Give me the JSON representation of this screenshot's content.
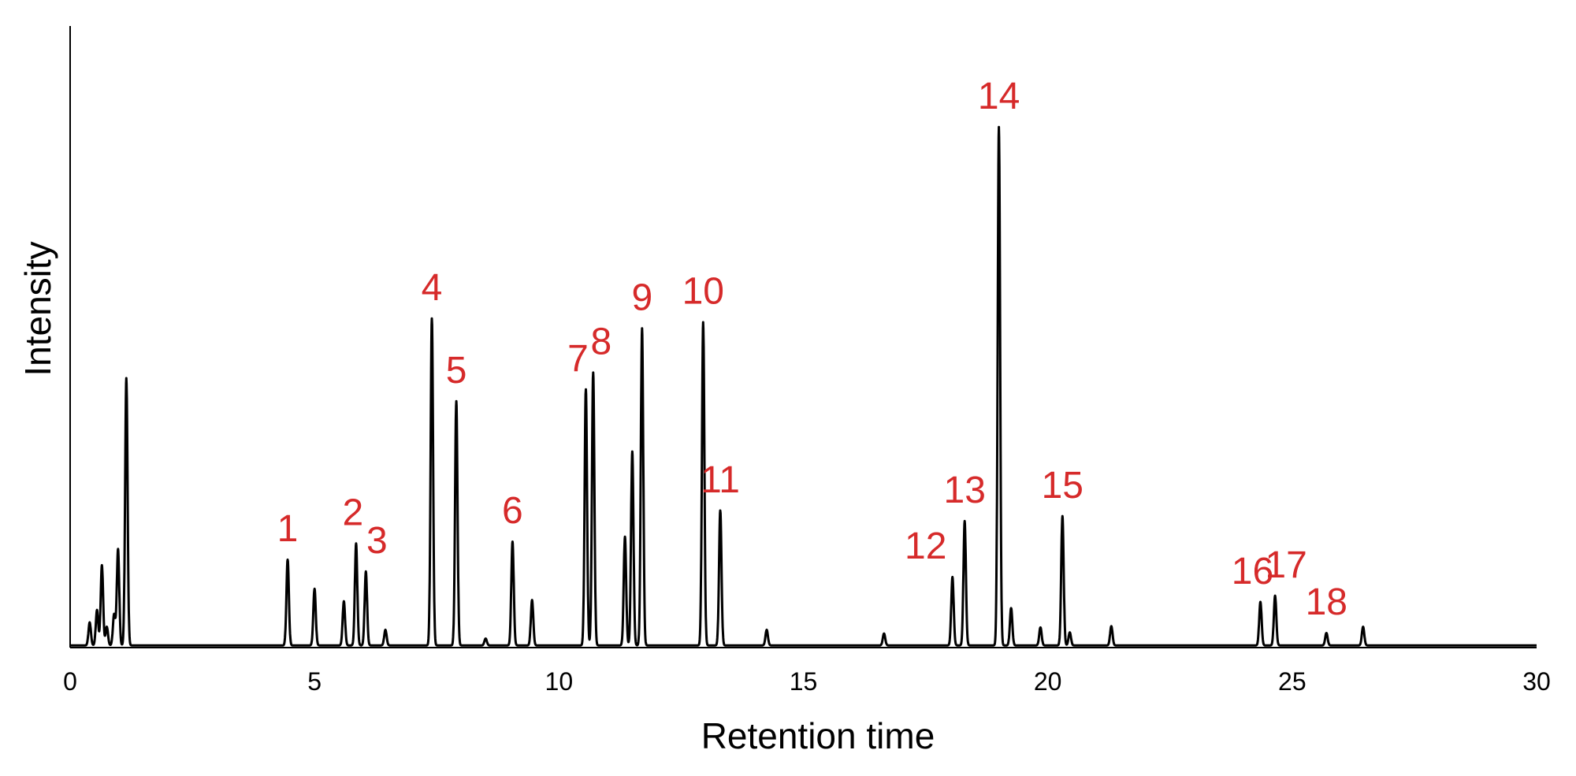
{
  "chart_data": {
    "type": "line",
    "xlabel": "Retention time",
    "ylabel": "Intensity",
    "xlim": [
      0,
      30
    ],
    "ylim": [
      0,
      100
    ],
    "x_ticks": [
      0,
      5,
      10,
      15,
      20,
      25,
      30
    ],
    "y_ticks_shown": false,
    "grid": false,
    "legend": "none",
    "line_color": "#000000",
    "label_color": "#d62a2a",
    "labeled_peaks": [
      {
        "label": "1",
        "x": 4.45,
        "y": 13.8
      },
      {
        "label": "2",
        "x": 5.85,
        "y": 16.4
      },
      {
        "label": "3",
        "x": 6.05,
        "y": 11.9
      },
      {
        "label": "4",
        "x": 7.4,
        "y": 52.6
      },
      {
        "label": "5",
        "x": 7.9,
        "y": 39.3
      },
      {
        "label": "6",
        "x": 9.05,
        "y": 16.7
      },
      {
        "label": "7",
        "x": 10.55,
        "y": 41.2
      },
      {
        "label": "8",
        "x": 10.7,
        "y": 43.9
      },
      {
        "label": "9",
        "x": 11.7,
        "y": 51.0
      },
      {
        "label": "10",
        "x": 12.95,
        "y": 52.0
      },
      {
        "label": "11",
        "x": 13.3,
        "y": 21.7
      },
      {
        "label": "12",
        "x": 18.05,
        "y": 11.0
      },
      {
        "label": "13",
        "x": 18.3,
        "y": 20.0
      },
      {
        "label": "14",
        "x": 19.0,
        "y": 83.4
      },
      {
        "label": "15",
        "x": 20.3,
        "y": 20.8
      },
      {
        "label": "16",
        "x": 24.35,
        "y": 7.0
      },
      {
        "label": "17",
        "x": 24.65,
        "y": 8.0
      },
      {
        "label": "18",
        "x": 25.7,
        "y": 2.0
      }
    ],
    "unlabeled_peaks": [
      {
        "x": 0.4,
        "y": 3.7
      },
      {
        "x": 0.55,
        "y": 5.7
      },
      {
        "x": 0.65,
        "y": 12.9
      },
      {
        "x": 0.75,
        "y": 3.0
      },
      {
        "x": 0.9,
        "y": 5.0
      },
      {
        "x": 0.98,
        "y": 15.5
      },
      {
        "x": 1.15,
        "y": 43.0
      },
      {
        "x": 5.0,
        "y": 9.1
      },
      {
        "x": 5.6,
        "y": 7.1
      },
      {
        "x": 6.45,
        "y": 2.5
      },
      {
        "x": 8.5,
        "y": 1.1
      },
      {
        "x": 9.45,
        "y": 7.3
      },
      {
        "x": 11.35,
        "y": 17.5
      },
      {
        "x": 11.5,
        "y": 31.2
      },
      {
        "x": 14.25,
        "y": 2.5
      },
      {
        "x": 16.65,
        "y": 1.9
      },
      {
        "x": 19.25,
        "y": 6.0
      },
      {
        "x": 19.85,
        "y": 2.9
      },
      {
        "x": 20.45,
        "y": 2.1
      },
      {
        "x": 21.3,
        "y": 3.1
      },
      {
        "x": 26.45,
        "y": 3.0
      }
    ]
  }
}
